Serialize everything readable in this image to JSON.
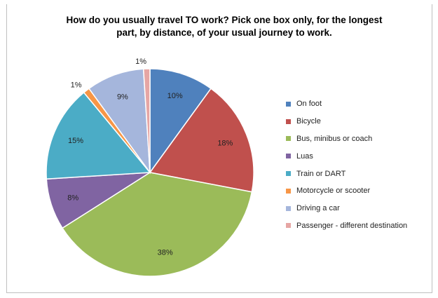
{
  "chart_data": {
    "type": "pie",
    "title_line1": "How do you usually travel TO work?  Pick one box only, for the longest",
    "title_line2": "part, by distance, of your usual journey to work.",
    "slices": [
      {
        "label": "On foot",
        "value": 10,
        "percent_label": "10%",
        "color": "#4f81bd"
      },
      {
        "label": "Bicycle",
        "value": 18,
        "percent_label": "18%",
        "color": "#c0504d"
      },
      {
        "label": "Bus, minibus or coach",
        "value": 38,
        "percent_label": "38%",
        "color": "#9bbb59"
      },
      {
        "label": "Luas",
        "value": 8,
        "percent_label": "8%",
        "color": "#8064a2"
      },
      {
        "label": "Train or DART",
        "value": 15,
        "percent_label": "15%",
        "color": "#4bacc6"
      },
      {
        "label": "Motorcycle or scooter",
        "value": 1,
        "percent_label": "1%",
        "color": "#f79646"
      },
      {
        "label": "Driving a car",
        "value": 9,
        "percent_label": "9%",
        "color": "#a5b6dc"
      },
      {
        "label": "Passenger - different destination",
        "value": 1,
        "percent_label": "1%",
        "color": "#e6a6a4"
      }
    ],
    "legend_position": "right"
  }
}
